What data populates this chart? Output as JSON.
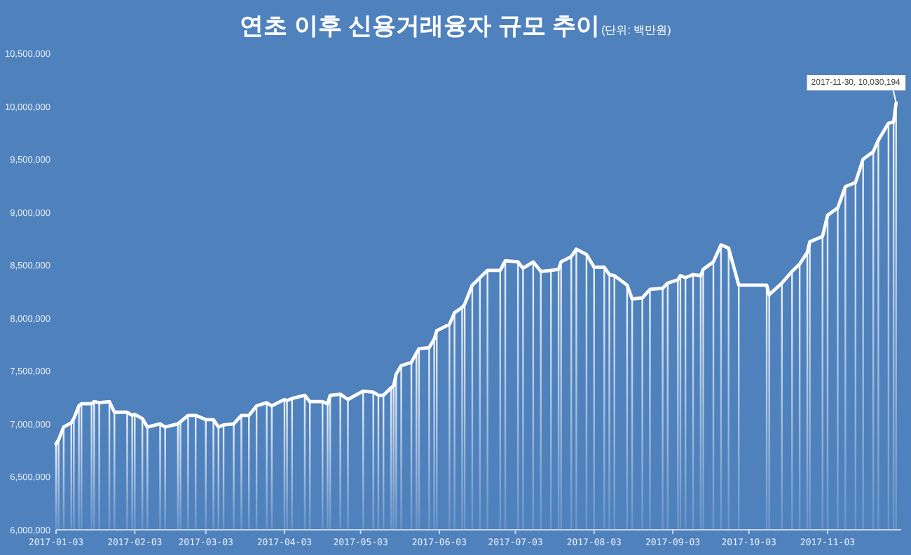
{
  "chart_data": {
    "type": "bar",
    "title": "연초 이후 신용거래융자 규모 추이",
    "subtitle": "(단위: 백만원)",
    "x": [
      "2017-01-03",
      "2017-01-04",
      "2017-01-06",
      "2017-01-09",
      "2017-01-10",
      "2017-01-12",
      "2017-01-13",
      "2017-01-17",
      "2017-01-18",
      "2017-01-20",
      "2017-01-24",
      "2017-01-26",
      "2017-01-31",
      "2017-02-02",
      "2017-02-03",
      "2017-02-06",
      "2017-02-08",
      "2017-02-13",
      "2017-02-15",
      "2017-02-20",
      "2017-02-21",
      "2017-02-24",
      "2017-02-27",
      "2017-03-03",
      "2017-03-06",
      "2017-03-08",
      "2017-03-10",
      "2017-03-14",
      "2017-03-17",
      "2017-03-20",
      "2017-03-23",
      "2017-03-27",
      "2017-03-29",
      "2017-04-03",
      "2017-04-04",
      "2017-04-06",
      "2017-04-11",
      "2017-04-13",
      "2017-04-18",
      "2017-04-20",
      "2017-04-21",
      "2017-04-25",
      "2017-04-28",
      "2017-05-04",
      "2017-05-08",
      "2017-05-10",
      "2017-05-12",
      "2017-05-15",
      "2017-05-16",
      "2017-05-17",
      "2017-05-19",
      "2017-05-23",
      "2017-05-25",
      "2017-05-26",
      "2017-05-30",
      "2017-06-01",
      "2017-06-02",
      "2017-06-07",
      "2017-06-09",
      "2017-06-12",
      "2017-06-13",
      "2017-06-16",
      "2017-06-19",
      "2017-06-22",
      "2017-06-27",
      "2017-06-29",
      "2017-07-04",
      "2017-07-06",
      "2017-07-10",
      "2017-07-13",
      "2017-07-17",
      "2017-07-20",
      "2017-07-21",
      "2017-07-25",
      "2017-07-27",
      "2017-07-31",
      "2017-08-03",
      "2017-08-07",
      "2017-08-09",
      "2017-08-11",
      "2017-08-16",
      "2017-08-18",
      "2017-08-22",
      "2017-08-25",
      "2017-08-30",
      "2017-09-01",
      "2017-09-05",
      "2017-09-06",
      "2017-09-08",
      "2017-09-11",
      "2017-09-14",
      "2017-09-15",
      "2017-09-19",
      "2017-09-22",
      "2017-09-25",
      "2017-09-29",
      "2017-10-10",
      "2017-10-11",
      "2017-10-16",
      "2017-10-20",
      "2017-10-23",
      "2017-10-26",
      "2017-10-27",
      "2017-11-01",
      "2017-11-03",
      "2017-11-07",
      "2017-11-10",
      "2017-11-14",
      "2017-11-17",
      "2017-11-21",
      "2017-11-23",
      "2017-11-27",
      "2017-11-29",
      "2017-11-30"
    ],
    "series": [
      {
        "color": "#ffffff",
        "values": [
          6810000,
          6850000,
          6970000,
          7010000,
          7050000,
          7170000,
          7190000,
          7190000,
          7210000,
          7200000,
          7210000,
          7110000,
          7110000,
          7080000,
          7090000,
          7050000,
          6970000,
          7000000,
          6970000,
          7000000,
          7020000,
          7080000,
          7080000,
          7040000,
          7040000,
          6970000,
          6990000,
          7000000,
          7080000,
          7080000,
          7170000,
          7200000,
          7170000,
          7230000,
          7220000,
          7240000,
          7270000,
          7210000,
          7210000,
          7190000,
          7270000,
          7280000,
          7230000,
          7310000,
          7300000,
          7270000,
          7270000,
          7340000,
          7360000,
          7470000,
          7550000,
          7580000,
          7670000,
          7710000,
          7720000,
          7800000,
          7880000,
          7940000,
          8050000,
          8100000,
          8130000,
          8310000,
          8380000,
          8450000,
          8450000,
          8540000,
          8530000,
          8470000,
          8530000,
          8440000,
          8450000,
          8460000,
          8530000,
          8580000,
          8650000,
          8600000,
          8480000,
          8480000,
          8410000,
          8400000,
          8310000,
          8180000,
          8190000,
          8270000,
          8280000,
          8330000,
          8360000,
          8400000,
          8380000,
          8410000,
          8400000,
          8460000,
          8530000,
          8690000,
          8660000,
          8310000,
          8310000,
          8220000,
          8330000,
          8440000,
          8510000,
          8620000,
          8720000,
          8770000,
          8970000,
          9040000,
          9240000,
          9280000,
          9500000,
          9570000,
          9680000,
          9840000,
          9850000,
          10030194
        ]
      },
      {
        "type": "line",
        "color": "#ffffff",
        "values": [
          6810000,
          6850000,
          6970000,
          7010000,
          7050000,
          7170000,
          7190000,
          7190000,
          7210000,
          7200000,
          7210000,
          7110000,
          7110000,
          7080000,
          7090000,
          7050000,
          6970000,
          7000000,
          6970000,
          7000000,
          7020000,
          7080000,
          7080000,
          7040000,
          7040000,
          6970000,
          6990000,
          7000000,
          7080000,
          7080000,
          7170000,
          7200000,
          7170000,
          7230000,
          7220000,
          7240000,
          7270000,
          7210000,
          7210000,
          7190000,
          7270000,
          7280000,
          7230000,
          7310000,
          7300000,
          7270000,
          7270000,
          7340000,
          7360000,
          7470000,
          7550000,
          7580000,
          7670000,
          7710000,
          7720000,
          7800000,
          7880000,
          7940000,
          8050000,
          8100000,
          8130000,
          8310000,
          8380000,
          8450000,
          8450000,
          8540000,
          8530000,
          8470000,
          8530000,
          8440000,
          8450000,
          8460000,
          8530000,
          8580000,
          8650000,
          8600000,
          8480000,
          8480000,
          8410000,
          8400000,
          8310000,
          8180000,
          8190000,
          8270000,
          8280000,
          8330000,
          8360000,
          8400000,
          8380000,
          8410000,
          8400000,
          8460000,
          8530000,
          8690000,
          8660000,
          8310000,
          8310000,
          8220000,
          8330000,
          8440000,
          8510000,
          8620000,
          8720000,
          8770000,
          8970000,
          9040000,
          9240000,
          9280000,
          9500000,
          9570000,
          9680000,
          9840000,
          9850000,
          10030194
        ]
      }
    ],
    "xlim": [
      "2017-01-03",
      "2017-12-02"
    ],
    "xticks": [
      "2017-01-03",
      "2017-02-03",
      "2017-03-03",
      "2017-04-03",
      "2017-05-03",
      "2017-06-03",
      "2017-07-03",
      "2017-08-03",
      "2017-09-03",
      "2017-10-03",
      "2017-11-03"
    ],
    "ylim": [
      6000000,
      10500000
    ],
    "yticks": [
      {
        "value": 6000000,
        "label": "6,000,000"
      },
      {
        "value": 6500000,
        "label": "6,500,000"
      },
      {
        "value": 7000000,
        "label": "7,000,000"
      },
      {
        "value": 7500000,
        "label": "7,500,000"
      },
      {
        "value": 8000000,
        "label": "8,000,000"
      },
      {
        "value": 8500000,
        "label": "8,500,000"
      },
      {
        "value": 9000000,
        "label": "9,000,000"
      },
      {
        "value": 9500000,
        "label": "9,500,000"
      },
      {
        "value": 10000000,
        "label": "10,000,000"
      },
      {
        "value": 10500000,
        "label": "10,500,000"
      }
    ],
    "annotations": [
      {
        "text": "2017-11-30, 10,030,194",
        "x": "2017-11-30",
        "y": 10030194
      }
    ],
    "grid": false,
    "line_style": "solid"
  }
}
